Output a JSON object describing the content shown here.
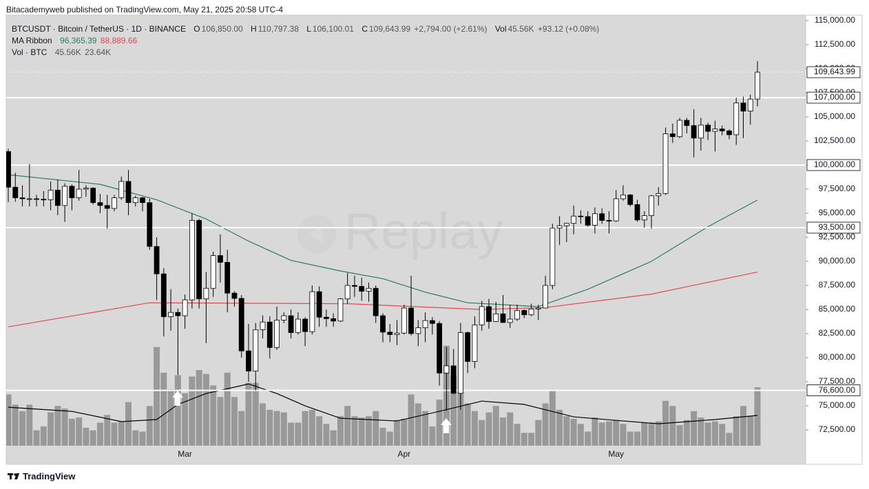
{
  "chart_data": {
    "type": "candlestick",
    "title": "Bitacademyweb published on TradingView.com, May 21, 2025 20:58 UTC-4",
    "footer": "TradingView",
    "watermark": "Replay",
    "legend": {
      "symbol": "BTCUSDT · Bitcoin / TetherUS · 1D · BINANCE",
      "ohlc_prefixes": [
        "O",
        "H",
        "L",
        "C"
      ],
      "last_labels": [
        "106,850.00",
        "110,797.38",
        "106,100.01",
        "109,643.99"
      ],
      "change": "+2,794.00 (+2.61%)",
      "vol_prefix": "Vol",
      "vol_change": "+93.12 (+0.08%)",
      "ma_title": "MA Ribbon",
      "vol_title": "Vol · BTC",
      "last_volume_label": "45.56K",
      "volume_ma_label": "23.64K"
    },
    "categories": [
      null,
      null,
      null,
      null,
      null,
      null,
      null,
      null,
      null,
      null,
      null,
      null,
      null,
      null,
      null,
      null,
      null,
      null,
      null,
      null,
      null,
      null,
      null,
      null,
      null,
      "Mar",
      null,
      null,
      null,
      null,
      null,
      null,
      null,
      null,
      null,
      null,
      null,
      null,
      null,
      null,
      null,
      null,
      null,
      null,
      null,
      null,
      null,
      null,
      null,
      null,
      null,
      null,
      null,
      null,
      null,
      null,
      "Apr",
      null,
      null,
      null,
      null,
      null,
      null,
      null,
      null,
      null,
      null,
      null,
      null,
      null,
      null,
      null,
      null,
      null,
      null,
      null,
      null,
      null,
      null,
      null,
      null,
      null,
      null,
      null,
      null,
      null,
      "May",
      null,
      null,
      null,
      null,
      null,
      null,
      null,
      null,
      null,
      null,
      null,
      null,
      null,
      null,
      null,
      null,
      null,
      null,
      null,
      null
    ],
    "open": [
      101400,
      97700,
      96600,
      96500,
      96500,
      96450,
      96400,
      97400,
      95800,
      97800,
      96600,
      97500,
      97600,
      96100,
      95800,
      95500,
      96600,
      98300,
      96100,
      96600,
      96100,
      91550,
      88700,
      84250,
      84700,
      84350,
      86000,
      94250,
      86100,
      87200,
      90600,
      89900,
      86700,
      86150,
      80700,
      78600,
      82900,
      83700,
      81050,
      83900,
      84350,
      82600,
      84000,
      82700,
      86850,
      84200,
      84050,
      83800,
      86100,
      87500,
      87400,
      86900,
      87200,
      84350,
      82650,
      82400,
      82550,
      85150,
      82500,
      83100,
      83850,
      83550,
      78400,
      79150,
      76300,
      82600,
      79600,
      83400,
      85300,
      83750,
      84550,
      83650,
      84000,
      84900,
      84450,
      85050,
      85150,
      87500,
      93450,
      93700,
      93950,
      94700,
      94650,
      93750,
      94950,
      94250,
      94200,
      96500,
      96900,
      95900,
      94300,
      94750,
      96800,
      97050,
      103250,
      102950,
      104650,
      104100,
      102800,
      104150,
      103500,
      103750,
      103550,
      103150,
      106450,
      105600,
      106850
    ],
    "high": [
      101700,
      99200,
      97900,
      100100,
      96900,
      97300,
      98300,
      98500,
      98100,
      98000,
      99500,
      97900,
      97700,
      97000,
      96900,
      96900,
      98800,
      99500,
      96800,
      96700,
      96500,
      92500,
      89300,
      87100,
      85100,
      86550,
      95000,
      94400,
      88900,
      91000,
      92800,
      91200,
      86900,
      86500,
      83500,
      83600,
      84400,
      84300,
      85300,
      84700,
      85000,
      84700,
      84200,
      87500,
      87400,
      85000,
      84600,
      86200,
      88800,
      88500,
      88300,
      87800,
      87500,
      84600,
      83500,
      83900,
      85500,
      88500,
      83900,
      84700,
      84200,
      83800,
      81100,
      80900,
      83600,
      82700,
      84300,
      85900,
      86100,
      85800,
      86500,
      85500,
      85500,
      85000,
      85600,
      85500,
      88500,
      93900,
      94700,
      94000,
      95800,
      95300,
      95200,
      95600,
      95500,
      95200,
      97400,
      97900,
      97000,
      96400,
      95200,
      96900,
      97700,
      103900,
      104300,
      104900,
      104900,
      105800,
      104900,
      104400,
      104600,
      104100,
      103700,
      107000,
      107100,
      107300,
      110797.38
    ],
    "low": [
      96150,
      96200,
      95700,
      95700,
      95700,
      95700,
      95300,
      94800,
      94100,
      95300,
      96300,
      96700,
      95900,
      95000,
      93400,
      95200,
      96400,
      94800,
      95700,
      95200,
      91200,
      86000,
      82200,
      82800,
      78200,
      83000,
      85100,
      85100,
      81500,
      86300,
      87800,
      84700,
      85300,
      80000,
      77500,
      76600,
      82000,
      79900,
      80800,
      83600,
      82000,
      82400,
      81200,
      82400,
      83200,
      83200,
      83200,
      83700,
      85600,
      86300,
      85900,
      85800,
      83600,
      81600,
      81600,
      81300,
      82400,
      82300,
      81200,
      81600,
      82400,
      77100,
      74500,
      76200,
      74600,
      78400,
      78900,
      82800,
      83000,
      83700,
      83600,
      83100,
      83800,
      84100,
      84300,
      83900,
      85100,
      87100,
      91700,
      92000,
      92800,
      93900,
      93600,
      92900,
      93900,
      92900,
      94100,
      96300,
      95700,
      94100,
      93500,
      93400,
      95800,
      96900,
      102300,
      102800,
      103300,
      100800,
      101500,
      102600,
      101400,
      103100,
      102700,
      102100,
      102800,
      104200,
      106100.01
    ],
    "close": [
      97700,
      96600,
      96500,
      96500,
      96450,
      96400,
      97400,
      95800,
      97800,
      96600,
      97500,
      97600,
      96100,
      95800,
      95500,
      96600,
      98300,
      96100,
      96600,
      96100,
      91550,
      88700,
      84250,
      84700,
      84350,
      86000,
      94250,
      86100,
      87200,
      90600,
      89900,
      86700,
      86150,
      80700,
      78600,
      82900,
      83700,
      81050,
      83900,
      84350,
      82600,
      84000,
      82700,
      86850,
      84200,
      84050,
      83800,
      86100,
      87500,
      87400,
      86900,
      87200,
      84350,
      82650,
      82400,
      82550,
      85150,
      82500,
      83100,
      83850,
      83550,
      78400,
      79150,
      76300,
      82600,
      79600,
      83400,
      85300,
      83750,
      84550,
      83650,
      84000,
      84900,
      84450,
      85050,
      85150,
      87500,
      93450,
      93700,
      93950,
      94700,
      94650,
      93750,
      94950,
      94250,
      94200,
      96500,
      96900,
      95900,
      94300,
      94750,
      96800,
      97050,
      103250,
      102950,
      104650,
      104100,
      102800,
      104150,
      103500,
      103750,
      103550,
      103150,
      106450,
      105600,
      106850,
      109643.99
    ],
    "up_color": "#ffffff",
    "down_color": "#000000",
    "wick_color": "#000000",
    "volume": [
      40000,
      32000,
      27000,
      32000,
      12000,
      15000,
      26000,
      31000,
      29000,
      21000,
      22000,
      14000,
      12000,
      18000,
      24000,
      18000,
      19000,
      34000,
      12000,
      11000,
      31000,
      77000,
      57000,
      44000,
      55000,
      41000,
      54000,
      59000,
      56000,
      47000,
      38000,
      57000,
      38000,
      27000,
      49000,
      49000,
      33000,
      28000,
      27000,
      26000,
      18000,
      18000,
      27000,
      28000,
      23000,
      17000,
      12000,
      23000,
      31000,
      23000,
      22000,
      23000,
      27000,
      14000,
      11000,
      20000,
      21000,
      40000,
      33000,
      27000,
      15000,
      36000,
      78000,
      55000,
      42000,
      33000,
      27000,
      20000,
      26000,
      31000,
      22000,
      26000,
      17000,
      10000,
      10000,
      20000,
      33000,
      43000,
      28000,
      23000,
      21000,
      17000,
      11000,
      22000,
      18000,
      19000,
      20000,
      17000,
      11000,
      11000,
      18000,
      18000,
      19000,
      35000,
      31000,
      16000,
      20000,
      27000,
      22000,
      18000,
      19000,
      17000,
      10000,
      23000,
      31000,
      23000,
      45560
    ],
    "volume_color": "#999999",
    "vlim": [
      0,
      80000
    ],
    "volume_ma": {
      "color": "#000000",
      "x": [
        0,
        9,
        16,
        21,
        24,
        28,
        34,
        38,
        42,
        47,
        55,
        61,
        67,
        73,
        80,
        87,
        92,
        100,
        106
      ],
      "values": [
        30000,
        26800,
        18800,
        20400,
        32200,
        40700,
        48200,
        40700,
        31100,
        21400,
        19300,
        26800,
        34800,
        32200,
        22500,
        19300,
        17100,
        20400,
        23640
      ]
    },
    "series": [
      {
        "color": "#2d7a5f",
        "x": [
          0,
          13,
          21,
          28,
          34,
          40,
          47,
          53,
          59,
          65,
          75,
          82,
          91,
          99,
          106
        ],
        "values": [
          99000,
          98000,
          96400,
          94400,
          92100,
          90100,
          89000,
          88200,
          86800,
          85700,
          85300,
          87100,
          90000,
          93600,
          96365.39
        ],
        "last_label": "96,365.39"
      },
      {
        "color": "#e5484d",
        "x": [
          0,
          20,
          48,
          67,
          76,
          91,
          106
        ],
        "values": [
          83200,
          85700,
          85600,
          85000,
          85200,
          86600,
          88889.66
        ],
        "last_label": "88,889.66"
      }
    ],
    "hlines": [
      {
        "value": 107000,
        "label": "107,000.00"
      },
      {
        "value": 100000,
        "label": "100,000.00"
      },
      {
        "value": 93500,
        "label": "93,500.00"
      },
      {
        "value": 76600,
        "label": "76,600.00"
      }
    ],
    "hline_color": "#ffffff",
    "ylim": [
      70857,
      115571
    ],
    "yticks": [
      {
        "value": 72500,
        "label": "72,500.00"
      },
      {
        "value": 75000,
        "label": "75,000.00"
      },
      {
        "value": 77500,
        "label": "77,500.00"
      },
      {
        "value": 80000,
        "label": "80,000.00"
      },
      {
        "value": 82500,
        "label": "82,500.00"
      },
      {
        "value": 85000,
        "label": "85,000.00"
      },
      {
        "value": 87500,
        "label": "87,500.00"
      },
      {
        "value": 90000,
        "label": "90,000.00"
      },
      {
        "value": 92500,
        "label": "92,500.00"
      },
      {
        "value": 95000,
        "label": "95,000.00"
      },
      {
        "value": 97500,
        "label": "97,500.00"
      },
      {
        "value": 100000,
        "label": "100,000.00"
      },
      {
        "value": 102500,
        "label": "102,500.00"
      },
      {
        "value": 105000,
        "label": "105,000.00"
      },
      {
        "value": 107500,
        "label": "107,500.00"
      },
      {
        "value": 110000,
        "label": "110,000.00"
      },
      {
        "value": 112500,
        "label": "112,500.00"
      },
      {
        "value": 115000,
        "label": "115,000.00"
      }
    ],
    "grid": false
  }
}
